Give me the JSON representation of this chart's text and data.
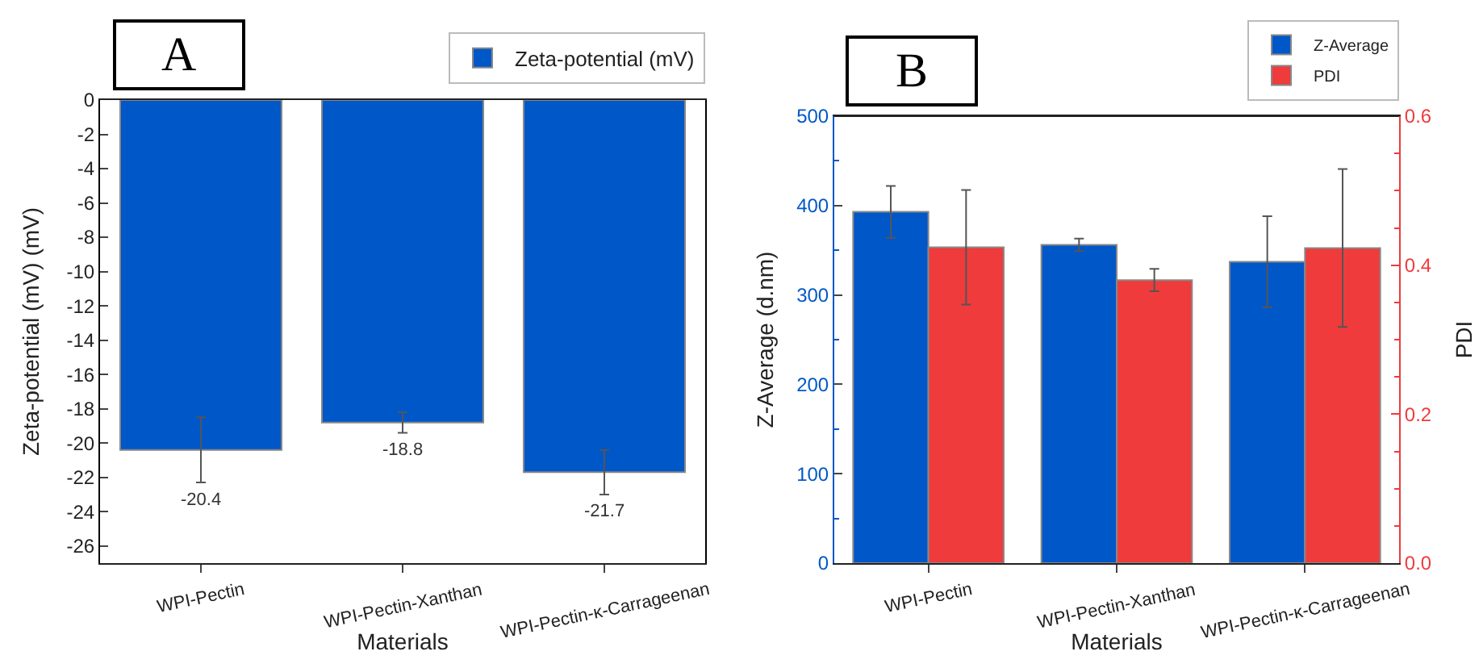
{
  "chart_data": [
    {
      "type": "bar",
      "title": "A",
      "xlabel": "Materials",
      "ylabel": "Zeta-potential (mV) (mV)",
      "categories": [
        "WPI-Pectin",
        "WPI-Pectin-Xanthan",
        "WPI-Pectin-κ-Carrageenan"
      ],
      "series": [
        {
          "name": "Zeta-potential (mV)",
          "color": "#0057c8",
          "values": [
            -20.4,
            -18.8,
            -21.7
          ],
          "errors": [
            1.9,
            0.6,
            1.3
          ]
        }
      ],
      "ylim": [
        -27,
        0
      ],
      "yticks": [
        0,
        -2,
        -4,
        -6,
        -8,
        -10,
        -12,
        -14,
        -16,
        -18,
        -20,
        -22,
        -24,
        -26
      ],
      "data_labels": true,
      "legend": "top right",
      "grid": false
    },
    {
      "type": "bar",
      "title": "B",
      "xlabel": "Materials",
      "ylabel": "Z-Average (d.nm)",
      "y2label": "PDI",
      "categories": [
        "WPI-Pectin",
        "WPI-Pectin-Xanthan",
        "WPI-Pectin-κ-Carrageenan"
      ],
      "series": [
        {
          "name": "Z-Average",
          "color": "#0057c8",
          "values": [
            393,
            356,
            337
          ],
          "errors": [
            29,
            7,
            51
          ]
        },
        {
          "name": "PDI",
          "color": "#ef3b3b",
          "axis": "y2",
          "values": [
            0.424,
            0.38,
            0.423
          ],
          "errors": [
            0.077,
            0.015,
            0.106
          ]
        }
      ],
      "ylim": [
        0,
        500
      ],
      "yticks": [
        0,
        100,
        200,
        300,
        400,
        500
      ],
      "y2lim": [
        0,
        0.6
      ],
      "y2ticks": [
        {
          "value": 0,
          "label": "0.0"
        },
        0.2,
        0.4,
        0.6
      ],
      "legend": "top right",
      "grid": false
    }
  ]
}
